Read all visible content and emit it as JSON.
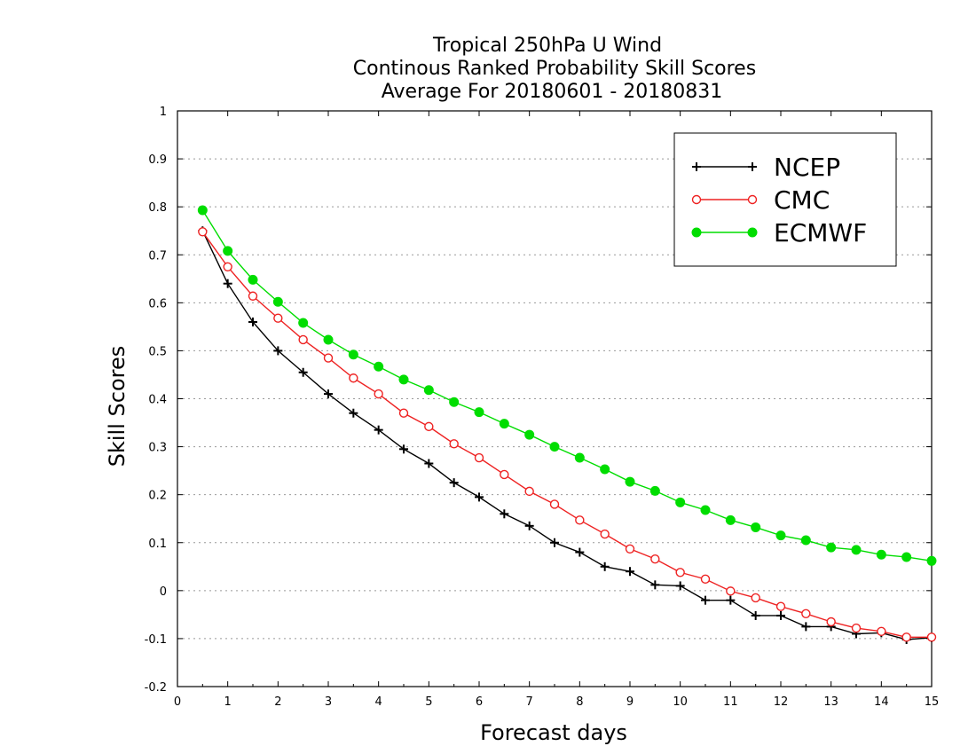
{
  "chart_data": {
    "type": "line",
    "title_lines": [
      "Tropical 250hPa U Wind",
      "Continous Ranked Probability Skill Scores",
      "Average For 20180601 - 20180831"
    ],
    "xlabel": "Forecast days",
    "ylabel": "Skill Scores",
    "xlim": [
      0,
      15
    ],
    "ylim": [
      -0.2,
      1
    ],
    "x_ticks": [
      "0",
      "1",
      "2",
      "3",
      "4",
      "5",
      "6",
      "7",
      "8",
      "9",
      "10",
      "11",
      "12",
      "13",
      "14",
      "15"
    ],
    "y_ticks": [
      "-0.2",
      "-0.1",
      "0",
      "0.1",
      "0.2",
      "0.3",
      "0.4",
      "0.5",
      "0.6",
      "0.7",
      "0.8",
      "0.9",
      "1"
    ],
    "grid": "horizontal dotted",
    "legend_position": "top-right",
    "x": [
      0.5,
      1,
      1.5,
      2,
      2.5,
      3,
      3.5,
      4,
      4.5,
      5,
      5.5,
      6,
      6.5,
      7,
      7.5,
      8,
      8.5,
      9,
      9.5,
      10,
      10.5,
      11,
      11.5,
      12,
      12.5,
      13,
      13.5,
      14,
      14.5,
      15
    ],
    "series": [
      {
        "name": "NCEP",
        "color": "#000000",
        "marker": "plus",
        "values": [
          0.75,
          0.64,
          0.56,
          0.5,
          0.455,
          0.41,
          0.37,
          0.335,
          0.295,
          0.265,
          0.225,
          0.195,
          0.16,
          0.135,
          0.1,
          0.08,
          0.05,
          0.04,
          0.012,
          0.01,
          -0.02,
          -0.02,
          -0.052,
          -0.052,
          -0.075,
          -0.075,
          -0.09,
          -0.088,
          -0.102,
          -0.098
        ]
      },
      {
        "name": "CMC",
        "color": "#ee2222",
        "marker": "open-circle",
        "values": [
          0.748,
          0.675,
          0.614,
          0.568,
          0.523,
          0.485,
          0.443,
          0.41,
          0.37,
          0.342,
          0.306,
          0.277,
          0.242,
          0.207,
          0.18,
          0.147,
          0.118,
          0.087,
          0.066,
          0.038,
          0.024,
          -0.001,
          -0.015,
          -0.033,
          -0.048,
          -0.065,
          -0.078,
          -0.085,
          -0.097,
          -0.097
        ]
      },
      {
        "name": "ECMWF",
        "color": "#00dd00",
        "marker": "filled-circle",
        "values": [
          0.793,
          0.708,
          0.648,
          0.602,
          0.558,
          0.523,
          0.492,
          0.467,
          0.44,
          0.418,
          0.393,
          0.372,
          0.348,
          0.325,
          0.3,
          0.277,
          0.253,
          0.227,
          0.208,
          0.184,
          0.168,
          0.147,
          0.132,
          0.115,
          0.105,
          0.09,
          0.085,
          0.075,
          0.07,
          0.062
        ]
      }
    ]
  }
}
